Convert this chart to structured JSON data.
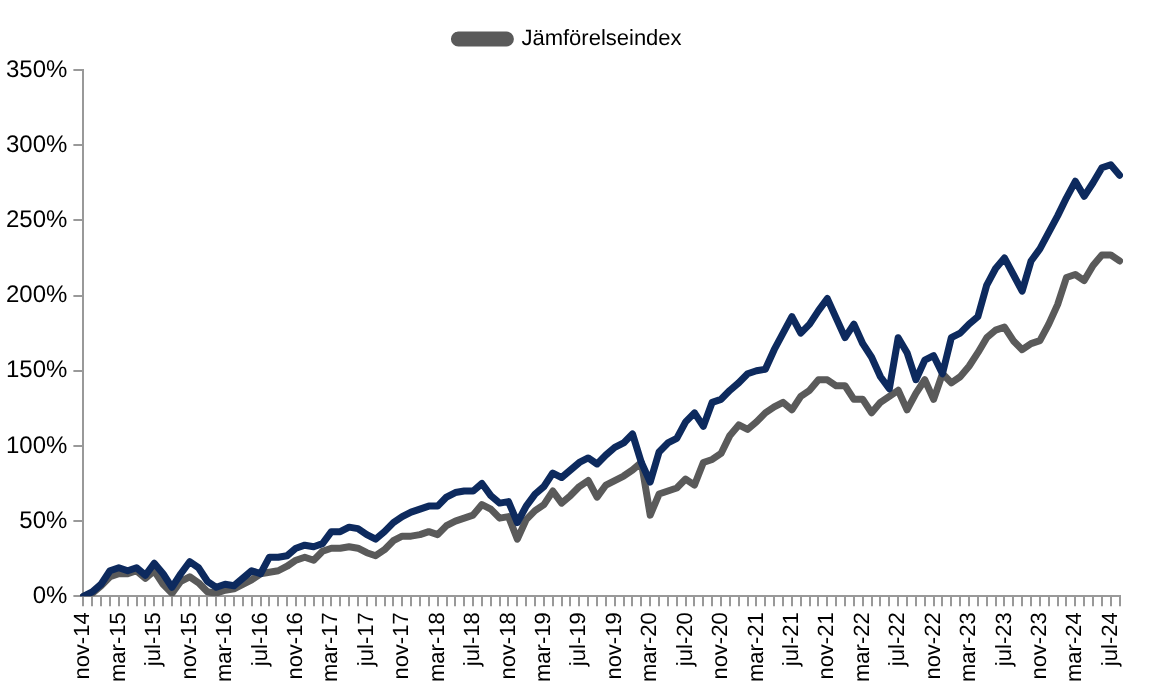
{
  "chart_data": {
    "type": "line",
    "categories": [
      "nov-14",
      null,
      null,
      null,
      "mar-15",
      null,
      null,
      null,
      "jul-15",
      null,
      null,
      null,
      "nov-15",
      null,
      null,
      null,
      "mar-16",
      null,
      null,
      null,
      "jul-16",
      null,
      null,
      null,
      "nov-16",
      null,
      null,
      null,
      "mar-17",
      null,
      null,
      null,
      "jul-17",
      null,
      null,
      null,
      "nov-17",
      null,
      null,
      null,
      "mar-18",
      null,
      null,
      null,
      "jul-18",
      null,
      null,
      null,
      "nov-18",
      null,
      null,
      null,
      "mar-19",
      null,
      null,
      null,
      "jul-19",
      null,
      null,
      null,
      "nov-19",
      null,
      null,
      null,
      "mar-20",
      null,
      null,
      null,
      "jul-20",
      null,
      null,
      null,
      "nov-20",
      null,
      null,
      null,
      "mar-21",
      null,
      null,
      null,
      "jul-21",
      null,
      null,
      null,
      "nov-21",
      null,
      null,
      null,
      "mar-22",
      null,
      null,
      null,
      "jul-22",
      null,
      null,
      null,
      "nov-22",
      null,
      null,
      null,
      "mar-23",
      null,
      null,
      null,
      "jul-23",
      null,
      null,
      null,
      "nov-23",
      null,
      null,
      null,
      "mar-24",
      null,
      null,
      null,
      "jul-24",
      null
    ],
    "series": [
      {
        "color": "#0d2a5e",
        "values": [
          0,
          3,
          8,
          17,
          19,
          17,
          19,
          14,
          22,
          15,
          6,
          15,
          23,
          19,
          10,
          6,
          8,
          7,
          12,
          17,
          15,
          26,
          26,
          27,
          32,
          34,
          33,
          35,
          43,
          43,
          46,
          45,
          41,
          38,
          43,
          49,
          53,
          56,
          58,
          60,
          60,
          66,
          69,
          70,
          70,
          75,
          67,
          62,
          63,
          49,
          60,
          68,
          73,
          82,
          79,
          84,
          89,
          92,
          88,
          94,
          99,
          102,
          108,
          89,
          76,
          96,
          102,
          105,
          116,
          122,
          113,
          129,
          131,
          137,
          142,
          148,
          150,
          151,
          164,
          175,
          186,
          175,
          181,
          190,
          198,
          185,
          172,
          181,
          168,
          159,
          146,
          138,
          172,
          162,
          144,
          157,
          160,
          148,
          172,
          175,
          181,
          186,
          207,
          218,
          225,
          214,
          203,
          223,
          231,
          242,
          253,
          265,
          276,
          266,
          275,
          285,
          287,
          280
        ]
      },
      {
        "name": "Jämförelseindex",
        "color": "#5a5a5a",
        "values": [
          0,
          2,
          7,
          13,
          15,
          15,
          17,
          12,
          17,
          8,
          2,
          10,
          13,
          9,
          3,
          2,
          4,
          5,
          8,
          11,
          15,
          16,
          17,
          20,
          24,
          26,
          24,
          30,
          32,
          32,
          33,
          32,
          29,
          27,
          31,
          37,
          40,
          40,
          41,
          43,
          41,
          47,
          50,
          52,
          54,
          61,
          58,
          52,
          53,
          38,
          51,
          57,
          61,
          70,
          62,
          67,
          73,
          77,
          66,
          74,
          77,
          80,
          84,
          89,
          54,
          68,
          70,
          72,
          78,
          74,
          89,
          91,
          95,
          107,
          114,
          111,
          116,
          122,
          126,
          129,
          124,
          133,
          137,
          144,
          144,
          140,
          140,
          131,
          131,
          122,
          129,
          133,
          137,
          124,
          135,
          144,
          131,
          148,
          142,
          146,
          153,
          162,
          172,
          177,
          179,
          170,
          164,
          168,
          170,
          181,
          194,
          212,
          214,
          210,
          220,
          227,
          227,
          223
        ]
      }
    ],
    "ylim": [
      0,
      350
    ],
    "yticks": [
      {
        "value": 0,
        "label": "0%"
      },
      {
        "value": 50,
        "label": "50%"
      },
      {
        "value": 100,
        "label": "100%"
      },
      {
        "value": 150,
        "label": "150%"
      },
      {
        "value": 200,
        "label": "200%"
      },
      {
        "value": 250,
        "label": "250%"
      },
      {
        "value": 300,
        "label": "300%"
      },
      {
        "value": 350,
        "label": "350%"
      }
    ],
    "grid": false,
    "legend": "top",
    "marker": "none",
    "line_style": "solid"
  }
}
